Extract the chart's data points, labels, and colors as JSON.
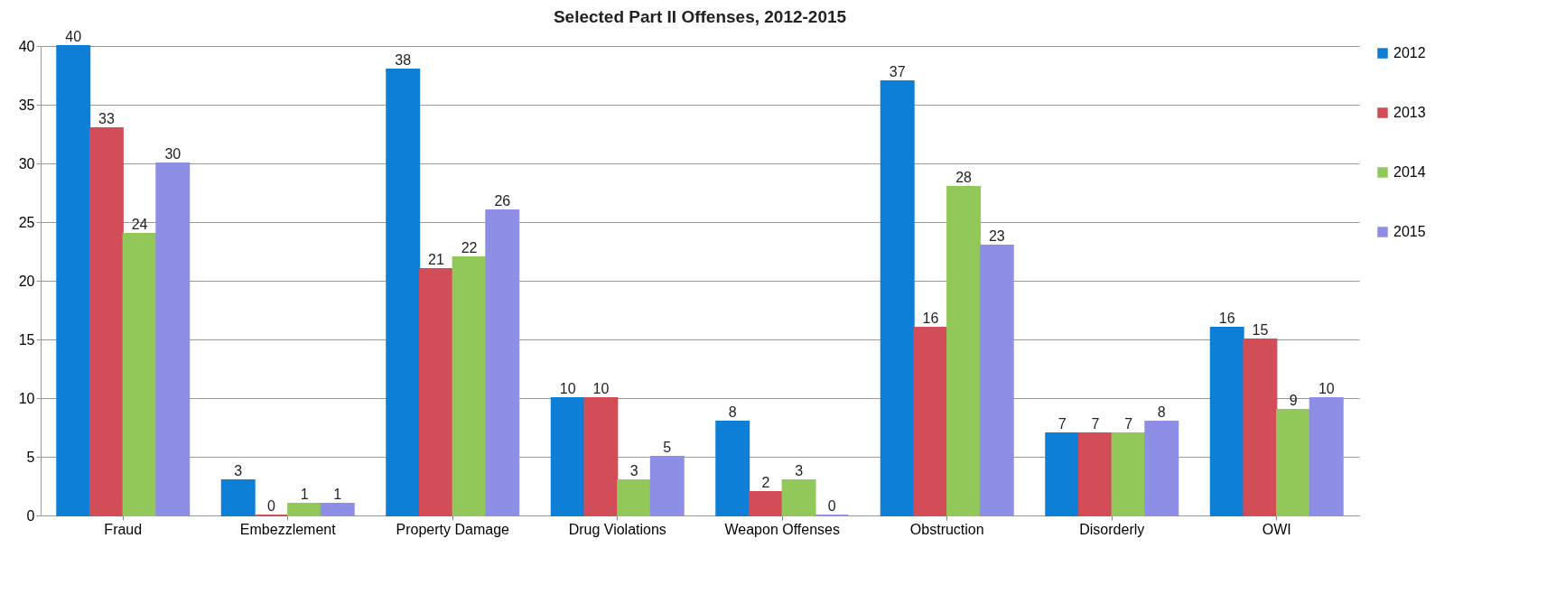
{
  "chart_data": {
    "type": "bar",
    "title": "Selected Part II Offenses, 2012-2015",
    "categories": [
      "Fraud",
      "Embezzlement",
      "Property Damage",
      "Drug Violations",
      "Weapon Offenses",
      "Obstruction",
      "Disorderly",
      "OWI"
    ],
    "series": [
      {
        "name": "2012",
        "color": "#0d7fd6",
        "values": [
          40,
          3,
          38,
          10,
          8,
          37,
          7,
          16
        ]
      },
      {
        "name": "2013",
        "color": "#d24d57",
        "values": [
          33,
          0,
          21,
          10,
          2,
          16,
          7,
          15
        ]
      },
      {
        "name": "2014",
        "color": "#92c85a",
        "values": [
          24,
          1,
          22,
          3,
          3,
          28,
          7,
          9
        ]
      },
      {
        "name": "2015",
        "color": "#8e8ee6",
        "values": [
          30,
          1,
          26,
          5,
          0,
          23,
          8,
          10
        ]
      }
    ],
    "ylim": [
      0,
      40
    ],
    "yticks": [
      0,
      5,
      10,
      15,
      20,
      25,
      30,
      35,
      40
    ],
    "grid": "y",
    "legend": "right",
    "data_labels": true
  }
}
